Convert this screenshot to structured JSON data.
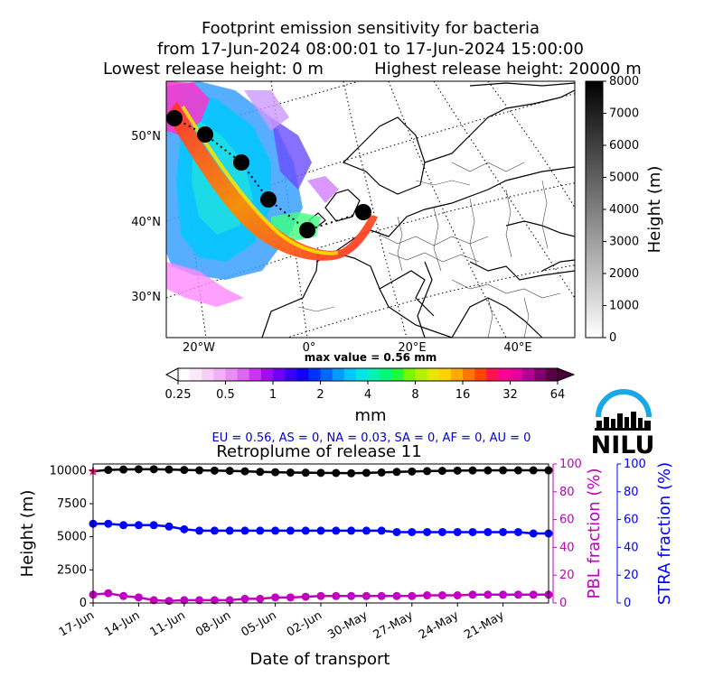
{
  "title": {
    "line1": "Footprint emission sensitivity for bacteria",
    "line2": "from 17-Jun-2024 08:00:01 to 17-Jun-2024 15:00:00",
    "lowest": "Lowest release height: 0 m",
    "highest": "Highest release height: 20000 m"
  },
  "map": {
    "lat_labels": [
      "50°N",
      "40°N",
      "30°N"
    ],
    "lon_labels": [
      "20°W",
      "0°",
      "20°E",
      "40°E"
    ],
    "max_value": "max value = 0.56 mm",
    "height_colorbar": {
      "label": "Height (m)",
      "ticks": [
        "8000",
        "7000",
        "6000",
        "5000",
        "4000",
        "3000",
        "2000",
        "1000",
        "0"
      ]
    },
    "mm_colorbar": {
      "label": "mm",
      "ticks": [
        "0.25",
        "0.5",
        "1",
        "2",
        "4",
        "8",
        "16",
        "32",
        "64"
      ]
    }
  },
  "regions_text": "EU = 0.56,  AS = 0,  NA = 0.03,  SA = 0,  AF = 0,  AU = 0",
  "logo_text": "NILU",
  "colors": {
    "height": "#000000",
    "pbl": "#c000c0",
    "stra": "#0000ff",
    "regions_text": "#0000cc"
  },
  "chart_data": {
    "type": "line",
    "title": "Retroplume of release 11",
    "xlabel": "Date of transport",
    "ylabel_left": "Height (m)",
    "ylabel_pbl": "PBL fraction (%)",
    "ylabel_stra": "STRA fraction (%)",
    "x_tick_labels": [
      "17-Jun",
      "14-Jun",
      "11-Jun",
      "08-Jun",
      "05-Jun",
      "02-Jun",
      "30-May",
      "27-May",
      "24-May",
      "21-May"
    ],
    "x_tick_days_back": [
      0,
      3,
      6,
      9,
      12,
      15,
      18,
      21,
      24,
      27
    ],
    "x_range_days_back": [
      0,
      30
    ],
    "y_left_ticks": [
      "0",
      "2500",
      "5000",
      "7500",
      "10000"
    ],
    "y_left_range": [
      0,
      10500
    ],
    "y_pbl_ticks": [
      "0",
      "20",
      "40",
      "60",
      "80",
      "100"
    ],
    "y_stra_ticks": [
      "0",
      "20",
      "40",
      "60",
      "80",
      "100"
    ],
    "y_pct_range": [
      0,
      100
    ],
    "series": [
      {
        "key": "height",
        "days_back": [
          0,
          1,
          2,
          3,
          4,
          5,
          6,
          7,
          8,
          9,
          10,
          11,
          12,
          13,
          14,
          15,
          16,
          17,
          18,
          19,
          20,
          21,
          22,
          23,
          24,
          25,
          26,
          27,
          28,
          29,
          30
        ],
        "values": [
          9950,
          10050,
          10080,
          10100,
          10100,
          10080,
          10050,
          10020,
          10000,
          9980,
          9950,
          9900,
          9880,
          9850,
          9840,
          9830,
          9820,
          9800,
          9830,
          9860,
          9900,
          9930,
          9960,
          9980,
          10000,
          10010,
          10010,
          10020,
          10020,
          10020,
          10020
        ],
        "first_point_marker": "star"
      },
      {
        "key": "pbl",
        "axis": "pct",
        "days_back": [
          0,
          1,
          2,
          3,
          4,
          5,
          6,
          7,
          8,
          9,
          10,
          11,
          12,
          13,
          14,
          15,
          16,
          17,
          18,
          19,
          20,
          21,
          22,
          23,
          24,
          25,
          26,
          27,
          28,
          29,
          30
        ],
        "values": [
          6,
          7,
          5,
          4,
          2,
          1.5,
          2,
          2,
          2,
          2,
          3,
          3,
          4,
          4,
          4.5,
          5,
          5,
          5,
          5,
          5,
          5,
          5,
          5.5,
          5.5,
          5.5,
          6,
          6,
          6,
          6,
          6,
          6
        ]
      },
      {
        "key": "stra",
        "axis": "pct",
        "days_back": [
          0,
          1,
          2,
          3,
          4,
          5,
          6,
          7,
          8,
          9,
          10,
          11,
          12,
          13,
          14,
          15,
          16,
          17,
          18,
          19,
          20,
          21,
          22,
          23,
          24,
          25,
          26,
          27,
          28,
          29,
          30
        ],
        "values": [
          57,
          57,
          56,
          56,
          56,
          55,
          53,
          52,
          52,
          52,
          52,
          52,
          52,
          52,
          52,
          52,
          52,
          52,
          52,
          52,
          51,
          51,
          51,
          51,
          51,
          51,
          51,
          51,
          51,
          50,
          50
        ]
      }
    ]
  }
}
